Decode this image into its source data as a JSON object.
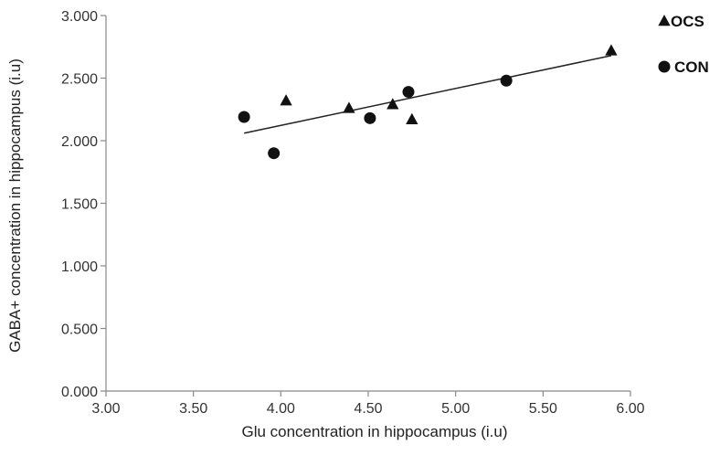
{
  "chart_data": {
    "type": "scatter",
    "xlabel": "Glu concentration in hippocampus  (i.u)",
    "ylabel": "GABA+ concentration in hippocampus (i.u)",
    "xlim": [
      3.0,
      6.0
    ],
    "ylim": [
      0.0,
      3.0
    ],
    "xticks": [
      "3.00",
      "3.50",
      "4.00",
      "4.50",
      "5.00",
      "5.50",
      "6.00"
    ],
    "yticks": [
      "0.000",
      "0.500",
      "1.000",
      "1.500",
      "2.000",
      "2.500",
      "3.000"
    ],
    "grid": false,
    "legend_position": "top-right",
    "series": [
      {
        "name": "OCS",
        "marker": "triangle",
        "points": [
          {
            "x": 4.03,
            "y": 2.32
          },
          {
            "x": 4.39,
            "y": 2.26
          },
          {
            "x": 4.64,
            "y": 2.29
          },
          {
            "x": 4.75,
            "y": 2.17
          },
          {
            "x": 5.89,
            "y": 2.72
          }
        ]
      },
      {
        "name": "CON",
        "marker": "circle",
        "points": [
          {
            "x": 3.79,
            "y": 2.19
          },
          {
            "x": 3.96,
            "y": 1.9
          },
          {
            "x": 4.51,
            "y": 2.18
          },
          {
            "x": 4.73,
            "y": 2.39
          },
          {
            "x": 5.29,
            "y": 2.48
          }
        ]
      }
    ],
    "trendline": {
      "x": [
        3.79,
        5.89
      ],
      "y": [
        2.06,
        2.68
      ]
    },
    "colors": {
      "axis": "#888888",
      "marker": "#111111",
      "trendline": "#222222"
    }
  }
}
